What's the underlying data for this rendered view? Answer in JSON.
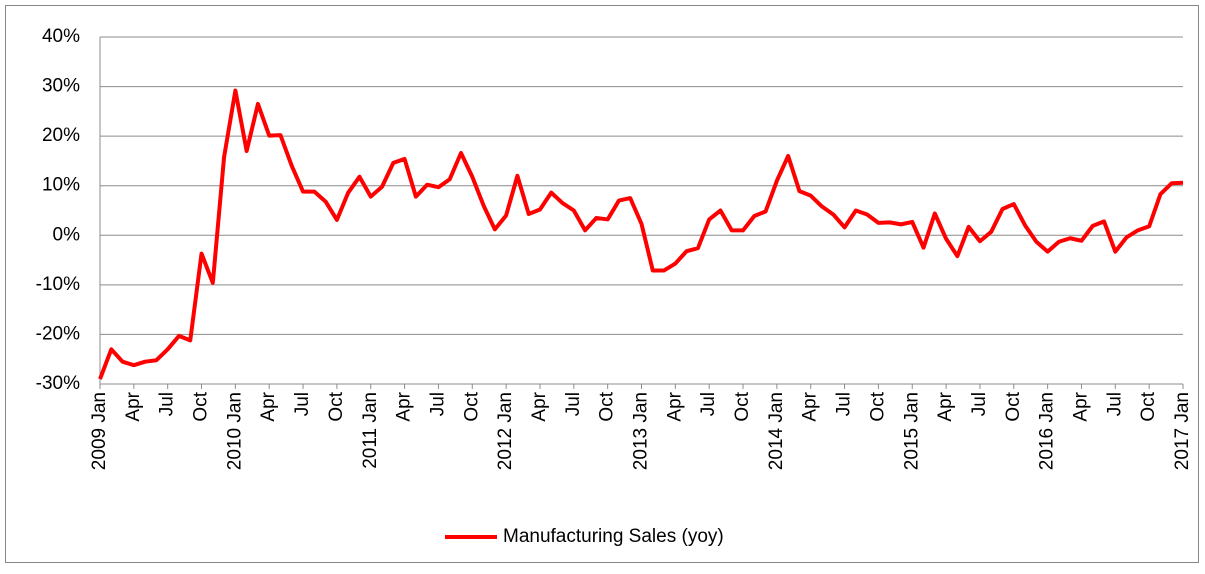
{
  "chart_data": {
    "type": "line",
    "categories": [
      "2009 Jan",
      null,
      null,
      "Apr",
      null,
      null,
      "Jul",
      null,
      null,
      "Oct",
      null,
      null,
      "2010 Jan",
      null,
      null,
      "Apr",
      null,
      null,
      "Jul",
      null,
      null,
      "Oct",
      null,
      null,
      "2011 Jan",
      null,
      null,
      "Apr",
      null,
      null,
      "Jul",
      null,
      null,
      "Oct",
      null,
      null,
      "2012 Jan",
      null,
      null,
      "Apr",
      null,
      null,
      "Jul",
      null,
      null,
      "Oct",
      null,
      null,
      "2013 Jan",
      null,
      null,
      "Apr",
      null,
      null,
      "Jul",
      null,
      null,
      "Oct",
      null,
      null,
      "2014 Jan",
      null,
      null,
      "Apr",
      null,
      null,
      "Jul",
      null,
      null,
      "Oct",
      null,
      null,
      "2015 Jan",
      null,
      null,
      "Apr",
      null,
      null,
      "Jul",
      null,
      null,
      "Oct",
      null,
      null,
      "2016 Jan",
      null,
      null,
      "Apr",
      null,
      null,
      "Jul",
      null,
      null,
      "Oct",
      null,
      null,
      "2017 Jan"
    ],
    "series": [
      {
        "name": "Manufacturing Sales (yoy)",
        "color": "#ff0000",
        "values": [
          -29,
          -23,
          -25.5,
          -26.2,
          -25.5,
          -25.2,
          -23,
          -20.3,
          -21.2,
          -3.7,
          -9.6,
          15.8,
          29.2,
          17,
          26.5,
          20.1,
          20.2,
          14,
          8.8,
          8.8,
          6.8,
          3.1,
          8.6,
          11.8,
          7.8,
          9.8,
          14.6,
          15.4,
          7.8,
          10.2,
          9.7,
          11.3,
          16.6,
          11.8,
          6,
          1.2,
          4,
          12,
          4.3,
          5.2,
          8.6,
          6.5,
          5,
          1,
          3.5,
          3.2,
          7,
          7.5,
          2.3,
          -7.1,
          -7.1,
          -5.7,
          -3.2,
          -2.6,
          3.2,
          5,
          1,
          1,
          3.9,
          4.8,
          11,
          16,
          8.9,
          8,
          5.8,
          4.2,
          1.6,
          5,
          4.2,
          2.5,
          2.6,
          2.2,
          2.7,
          -2.5,
          4.4,
          -0.7,
          -4.2,
          1.7,
          -1.2,
          0.7,
          5.3,
          6.3,
          2,
          -1.3,
          -3.3,
          -1.3,
          -0.6,
          -1.1,
          1.9,
          2.8,
          -3.3,
          -0.4,
          1,
          1.8,
          8.3,
          10.5,
          10.6
        ]
      }
    ],
    "ylim": [
      -30,
      40
    ],
    "yticks": [
      {
        "value": -30,
        "label": "-30%"
      },
      {
        "value": -20,
        "label": "-20%"
      },
      {
        "value": -10,
        "label": "-10%"
      },
      {
        "value": 0,
        "label": "0%"
      },
      {
        "value": 10,
        "label": "10%"
      },
      {
        "value": 20,
        "label": "20%"
      },
      {
        "value": 30,
        "label": "30%"
      },
      {
        "value": 40,
        "label": "40%"
      }
    ],
    "grid": true,
    "legend": "bottom"
  }
}
